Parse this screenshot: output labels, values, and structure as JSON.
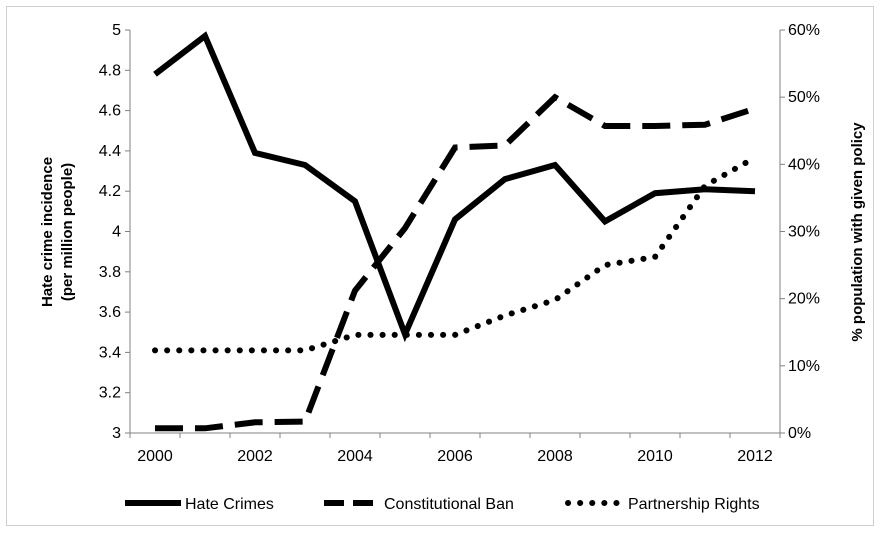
{
  "chart_data": {
    "type": "line",
    "title": "",
    "x": [
      2000,
      2001,
      2002,
      2003,
      2004,
      2005,
      2006,
      2007,
      2008,
      2009,
      2010,
      2011,
      2012
    ],
    "xticks": [
      "2000",
      "2002",
      "2004",
      "2006",
      "2008",
      "2010",
      "2012"
    ],
    "xlim": [
      1999.5,
      2012.5
    ],
    "y_left": {
      "label_line1": "Hate crime incidence",
      "label_line2": "(per million people)",
      "lim": [
        3,
        5
      ],
      "ticks": [
        "3",
        "3.2",
        "3.4",
        "3.6",
        "3.8",
        "4",
        "4.2",
        "4.4",
        "4.6",
        "4.8",
        "5"
      ]
    },
    "y_right": {
      "label": "% population with given policy",
      "lim": [
        0,
        60
      ],
      "ticks": [
        "0%",
        "10%",
        "20%",
        "30%",
        "40%",
        "50%",
        "60%"
      ]
    },
    "grid": false,
    "legend_position": "bottom",
    "series": [
      {
        "name": "Hate Crimes",
        "axis": "left",
        "style": "solid",
        "values": [
          4.78,
          4.97,
          4.39,
          4.33,
          4.15,
          3.49,
          4.06,
          4.26,
          4.33,
          4.05,
          4.19,
          4.21,
          4.2
        ]
      },
      {
        "name": "Constitutional Ban",
        "axis": "right",
        "style": "dashed",
        "values": [
          0.7,
          0.7,
          1.6,
          1.7,
          21.2,
          30.5,
          42.5,
          42.8,
          50.0,
          45.7,
          45.7,
          45.9,
          48.3
        ]
      },
      {
        "name": "Partnership Rights",
        "axis": "right",
        "style": "dotted",
        "values": [
          12.3,
          12.3,
          12.3,
          12.3,
          14.6,
          14.6,
          14.6,
          17.5,
          19.8,
          25.0,
          26.2,
          36.8,
          41.0
        ]
      }
    ],
    "colors": {
      "line": "#000000",
      "axis": "#808080"
    }
  }
}
